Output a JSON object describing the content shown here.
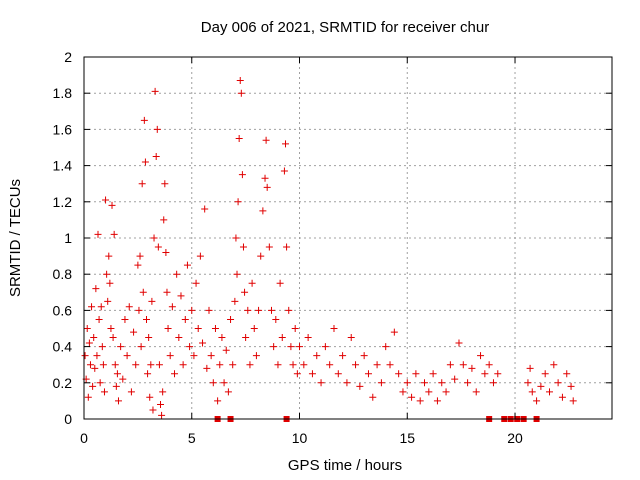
{
  "chart_data": {
    "type": "scatter",
    "title": "Day 006 of 2021, SRMTID for receiver chur",
    "xlabel": "GPS time / hours",
    "ylabel": "SRMTID / TECUs",
    "xlim": [
      0,
      24.5
    ],
    "ylim": [
      0,
      2
    ],
    "xticks": [
      0,
      5,
      10,
      15,
      20
    ],
    "xtick_labels": [
      "0",
      "5",
      "10",
      "15",
      "20"
    ],
    "yticks": [
      0,
      0.2,
      0.4,
      0.6,
      0.8,
      1,
      1.2,
      1.4,
      1.6,
      1.8,
      2
    ],
    "ytick_labels": [
      "0",
      "0.2",
      "0.4",
      "0.6",
      "0.8",
      "1",
      "1.2",
      "1.4",
      "1.6",
      "1.8",
      "2"
    ],
    "grid": true,
    "legend": "none",
    "series": [
      {
        "name": "SRMTID",
        "color": "#e00000",
        "marker": "plus",
        "points": [
          [
            0.05,
            0.35
          ],
          [
            0.1,
            0.22
          ],
          [
            0.15,
            0.5
          ],
          [
            0.2,
            0.12
          ],
          [
            0.25,
            0.42
          ],
          [
            0.3,
            0.3
          ],
          [
            0.35,
            0.62
          ],
          [
            0.4,
            0.18
          ],
          [
            0.45,
            0.45
          ],
          [
            0.5,
            0.28
          ],
          [
            0.55,
            0.72
          ],
          [
            0.6,
            0.35
          ],
          [
            0.65,
            1.02
          ],
          [
            0.7,
            0.55
          ],
          [
            0.75,
            0.2
          ],
          [
            0.8,
            0.62
          ],
          [
            0.85,
            0.4
          ],
          [
            0.9,
            0.3
          ],
          [
            0.95,
            0.15
          ],
          [
            1.0,
            1.21
          ],
          [
            1.05,
            0.8
          ],
          [
            1.1,
            0.65
          ],
          [
            1.15,
            0.9
          ],
          [
            1.2,
            0.75
          ],
          [
            1.25,
            0.5
          ],
          [
            1.3,
            1.18
          ],
          [
            1.35,
            0.45
          ],
          [
            1.4,
            1.02
          ],
          [
            1.45,
            0.3
          ],
          [
            1.5,
            0.18
          ],
          [
            1.55,
            0.25
          ],
          [
            1.6,
            0.1
          ],
          [
            1.7,
            0.4
          ],
          [
            1.8,
            0.22
          ],
          [
            1.9,
            0.55
          ],
          [
            2.0,
            0.35
          ],
          [
            2.1,
            0.62
          ],
          [
            2.2,
            0.15
          ],
          [
            2.3,
            0.48
          ],
          [
            2.4,
            0.3
          ],
          [
            2.5,
            0.85
          ],
          [
            2.55,
            0.6
          ],
          [
            2.6,
            0.9
          ],
          [
            2.65,
            0.4
          ],
          [
            2.7,
            1.3
          ],
          [
            2.75,
            0.7
          ],
          [
            2.8,
            1.65
          ],
          [
            2.85,
            1.42
          ],
          [
            2.9,
            0.55
          ],
          [
            2.95,
            0.25
          ],
          [
            3.0,
            0.45
          ],
          [
            3.05,
            0.12
          ],
          [
            3.1,
            0.3
          ],
          [
            3.15,
            0.65
          ],
          [
            3.2,
            0.05
          ],
          [
            3.25,
            1.0
          ],
          [
            3.3,
            1.81
          ],
          [
            3.35,
            1.45
          ],
          [
            3.4,
            1.6
          ],
          [
            3.45,
            0.95
          ],
          [
            3.5,
            0.3
          ],
          [
            3.55,
            0.08
          ],
          [
            3.6,
            0.02
          ],
          [
            3.65,
            0.15
          ],
          [
            3.7,
            1.1
          ],
          [
            3.75,
            1.3
          ],
          [
            3.8,
            0.92
          ],
          [
            3.85,
            0.7
          ],
          [
            3.9,
            0.5
          ],
          [
            4.0,
            0.35
          ],
          [
            4.1,
            0.62
          ],
          [
            4.2,
            0.25
          ],
          [
            4.3,
            0.8
          ],
          [
            4.4,
            0.45
          ],
          [
            4.5,
            0.68
          ],
          [
            4.6,
            0.3
          ],
          [
            4.7,
            0.55
          ],
          [
            4.8,
            0.85
          ],
          [
            4.9,
            0.4
          ],
          [
            5.0,
            0.6
          ],
          [
            5.1,
            0.35
          ],
          [
            5.2,
            0.75
          ],
          [
            5.3,
            0.5
          ],
          [
            5.4,
            0.9
          ],
          [
            5.5,
            0.42
          ],
          [
            5.6,
            1.16
          ],
          [
            5.7,
            0.28
          ],
          [
            5.8,
            0.6
          ],
          [
            5.9,
            0.35
          ],
          [
            6.0,
            0.2
          ],
          [
            6.1,
            0.5
          ],
          [
            6.2,
            0.1
          ],
          [
            6.3,
            0.3
          ],
          [
            6.4,
            0.45
          ],
          [
            6.5,
            0.2
          ],
          [
            6.6,
            0.38
          ],
          [
            6.7,
            0.15
          ],
          [
            6.8,
            0.55
          ],
          [
            6.9,
            0.3
          ],
          [
            7.0,
            0.65
          ],
          [
            7.05,
            1.0
          ],
          [
            7.1,
            0.8
          ],
          [
            7.15,
            1.2
          ],
          [
            7.2,
            1.55
          ],
          [
            7.25,
            1.87
          ],
          [
            7.3,
            1.8
          ],
          [
            7.35,
            1.35
          ],
          [
            7.4,
            0.95
          ],
          [
            7.45,
            0.7
          ],
          [
            7.5,
            0.45
          ],
          [
            7.6,
            0.6
          ],
          [
            7.7,
            0.3
          ],
          [
            7.8,
            0.75
          ],
          [
            7.9,
            0.5
          ],
          [
            8.0,
            0.35
          ],
          [
            8.1,
            0.6
          ],
          [
            8.2,
            0.9
          ],
          [
            8.3,
            1.15
          ],
          [
            8.4,
            1.33
          ],
          [
            8.45,
            1.54
          ],
          [
            8.5,
            1.28
          ],
          [
            8.6,
            0.95
          ],
          [
            8.7,
            0.6
          ],
          [
            8.8,
            0.4
          ],
          [
            8.9,
            0.55
          ],
          [
            9.0,
            0.3
          ],
          [
            9.1,
            0.75
          ],
          [
            9.2,
            0.45
          ],
          [
            9.3,
            1.37
          ],
          [
            9.35,
            1.52
          ],
          [
            9.4,
            0.95
          ],
          [
            9.5,
            0.6
          ],
          [
            9.6,
            0.4
          ],
          [
            9.7,
            0.3
          ],
          [
            9.8,
            0.5
          ],
          [
            9.9,
            0.25
          ],
          [
            10.0,
            0.4
          ],
          [
            10.2,
            0.3
          ],
          [
            10.4,
            0.45
          ],
          [
            10.6,
            0.25
          ],
          [
            10.8,
            0.35
          ],
          [
            11.0,
            0.2
          ],
          [
            11.2,
            0.4
          ],
          [
            11.4,
            0.3
          ],
          [
            11.6,
            0.5
          ],
          [
            11.8,
            0.25
          ],
          [
            12.0,
            0.35
          ],
          [
            12.2,
            0.2
          ],
          [
            12.4,
            0.45
          ],
          [
            12.6,
            0.3
          ],
          [
            12.8,
            0.18
          ],
          [
            13.0,
            0.35
          ],
          [
            13.2,
            0.25
          ],
          [
            13.4,
            0.12
          ],
          [
            13.6,
            0.3
          ],
          [
            13.8,
            0.2
          ],
          [
            14.0,
            0.4
          ],
          [
            14.2,
            0.3
          ],
          [
            14.4,
            0.48
          ],
          [
            14.6,
            0.25
          ],
          [
            14.8,
            0.15
          ],
          [
            15.0,
            0.2
          ],
          [
            15.2,
            0.12
          ],
          [
            15.4,
            0.25
          ],
          [
            15.6,
            0.1
          ],
          [
            15.8,
            0.2
          ],
          [
            16.0,
            0.15
          ],
          [
            16.2,
            0.25
          ],
          [
            16.4,
            0.1
          ],
          [
            16.6,
            0.2
          ],
          [
            16.8,
            0.15
          ],
          [
            17.0,
            0.3
          ],
          [
            17.2,
            0.22
          ],
          [
            17.4,
            0.42
          ],
          [
            17.6,
            0.3
          ],
          [
            17.8,
            0.2
          ],
          [
            18.0,
            0.28
          ],
          [
            18.2,
            0.15
          ],
          [
            18.4,
            0.35
          ],
          [
            18.6,
            0.25
          ],
          [
            18.8,
            0.3
          ],
          [
            19.0,
            0.2
          ],
          [
            19.2,
            0.25
          ],
          [
            20.6,
            0.2
          ],
          [
            20.7,
            0.28
          ],
          [
            20.8,
            0.15
          ],
          [
            21.0,
            0.1
          ],
          [
            21.2,
            0.18
          ],
          [
            21.4,
            0.25
          ],
          [
            21.6,
            0.15
          ],
          [
            21.8,
            0.3
          ],
          [
            22.0,
            0.2
          ],
          [
            22.2,
            0.12
          ],
          [
            22.4,
            0.25
          ],
          [
            22.6,
            0.18
          ],
          [
            22.7,
            0.1
          ]
        ],
        "zero_markers": [
          6.2,
          6.8,
          9.4,
          18.8,
          19.5,
          19.8,
          20.1,
          20.4,
          21.0
        ]
      }
    ]
  }
}
